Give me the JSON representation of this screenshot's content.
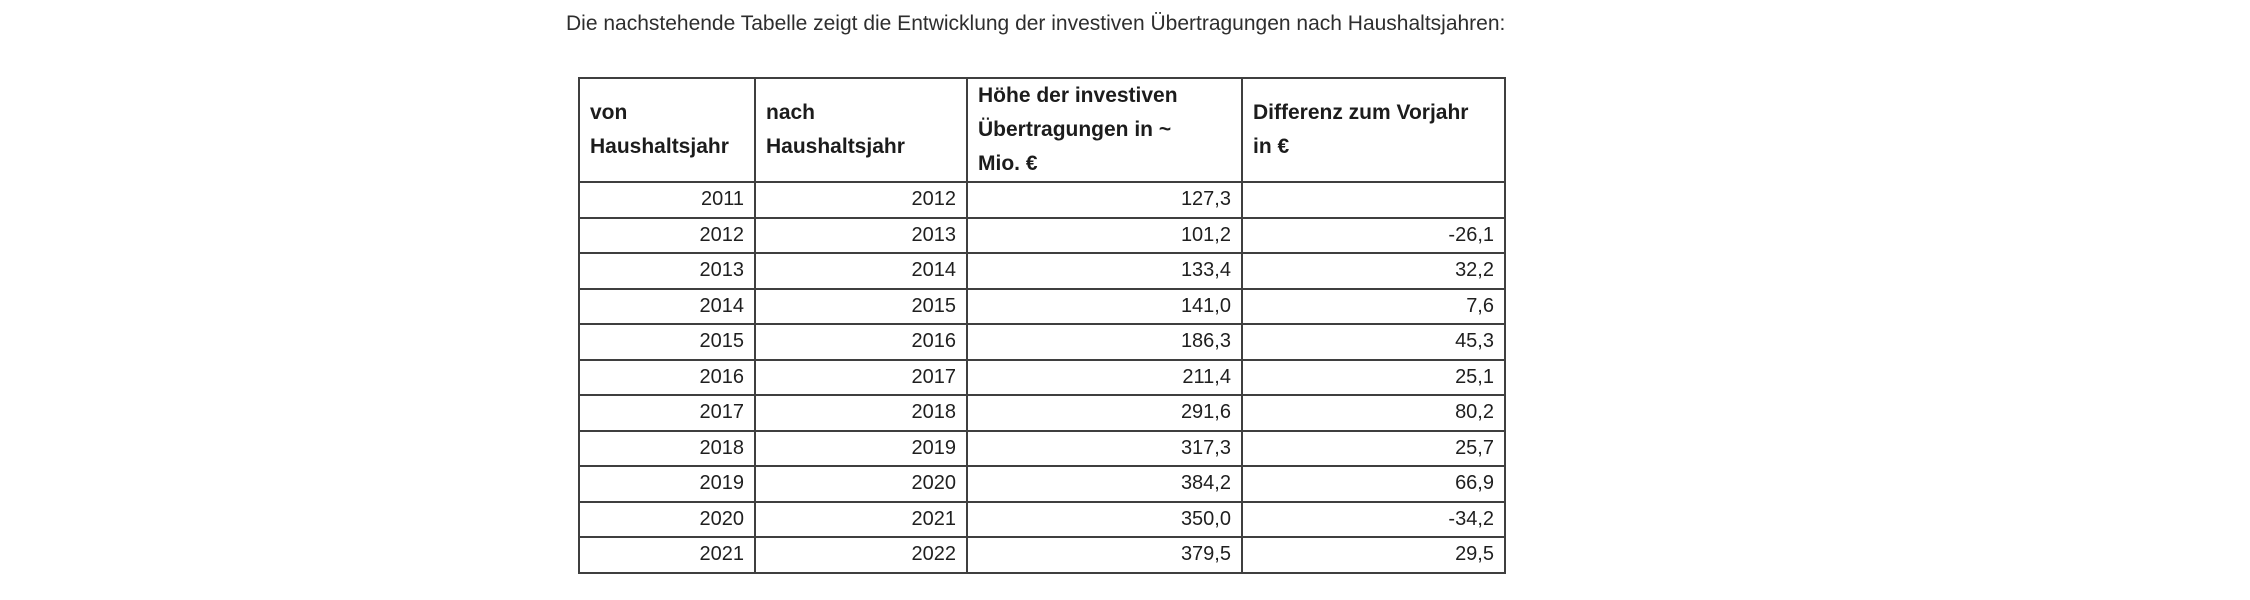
{
  "page": {
    "background_color": "#ffffff",
    "text_color": "#2e2e2e",
    "border_color": "#3f3f3f"
  },
  "intro": {
    "text": "Die nachstehende Tabelle zeigt die Entwicklung der investiven Übertragungen nach Haushaltsjahren:"
  },
  "table": {
    "headers": [
      {
        "lines": [
          "von",
          "Haushaltsjahr"
        ]
      },
      {
        "lines": [
          "nach",
          "Haushaltsjahr"
        ]
      },
      {
        "lines": [
          "Höhe der investiven",
          "Übertragungen in ~",
          "Mio. €"
        ]
      },
      {
        "lines": [
          "Differenz zum Vorjahr",
          "in €"
        ]
      }
    ],
    "rows": [
      [
        "2011",
        "2012",
        "127,3",
        ""
      ],
      [
        "2012",
        "2013",
        "101,2",
        "-26,1"
      ],
      [
        "2013",
        "2014",
        "133,4",
        "32,2"
      ],
      [
        "2014",
        "2015",
        "141,0",
        "7,6"
      ],
      [
        "2015",
        "2016",
        "186,3",
        "45,3"
      ],
      [
        "2016",
        "2017",
        "211,4",
        "25,1"
      ],
      [
        "2017",
        "2018",
        "291,6",
        "80,2"
      ],
      [
        "2018",
        "2019",
        "317,3",
        "25,7"
      ],
      [
        "2019",
        "2020",
        "384,2",
        "66,9"
      ],
      [
        "2020",
        "2021",
        "350,0",
        "-34,2"
      ],
      [
        "2021",
        "2022",
        "379,5",
        "29,5"
      ]
    ]
  }
}
